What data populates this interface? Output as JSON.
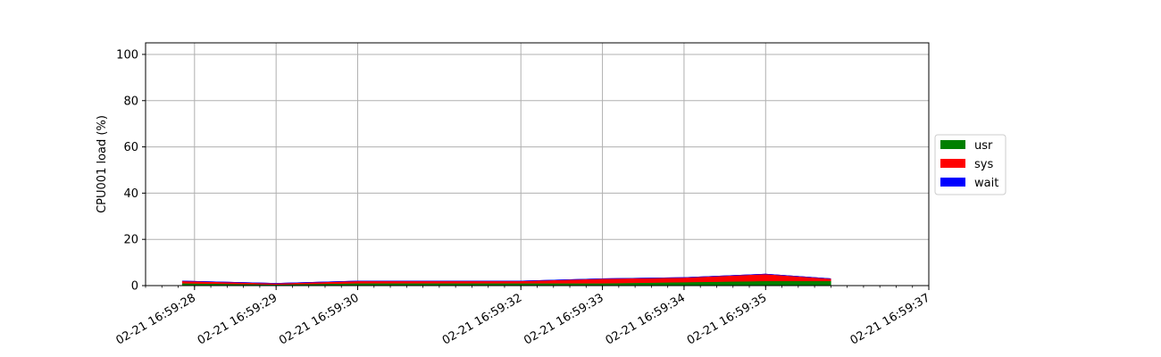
{
  "chart_data": {
    "type": "area",
    "stacked": true,
    "title": "",
    "xlabel": "",
    "ylabel": "CPU001 load (%)",
    "ylim": [
      0,
      105
    ],
    "yticks": [
      0,
      20,
      40,
      60,
      80,
      100
    ],
    "x_tick_labels": [
      "02-21 16:59:28",
      "02-21 16:59:29",
      "02-21 16:59:30",
      "02-21 16:59:32",
      "02-21 16:59:33",
      "02-21 16:59:34",
      "02-21 16:59:35",
      "02-21 16:59:37"
    ],
    "x": [
      "02-21 16:59:27.85",
      "02-21 16:59:29.0",
      "02-21 16:59:30.0",
      "02-21 16:59:31.0",
      "02-21 16:59:32.0",
      "02-21 16:59:33.0",
      "02-21 16:59:34.0",
      "02-21 16:59:35.0",
      "02-21 16:59:35.8"
    ],
    "series": [
      {
        "name": "usr",
        "color": "#008000",
        "values": [
          1,
          0.5,
          1,
          1,
          1,
          1,
          1.5,
          2,
          2
        ]
      },
      {
        "name": "sys",
        "color": "#ff0000",
        "values": [
          1,
          0.5,
          1,
          1,
          1,
          2,
          2,
          3,
          1
        ]
      },
      {
        "name": "wait",
        "color": "#0000ff",
        "values": [
          0,
          0,
          0,
          0,
          0,
          0,
          0,
          0,
          0
        ]
      }
    ],
    "grid": true,
    "legend": "center-right"
  }
}
